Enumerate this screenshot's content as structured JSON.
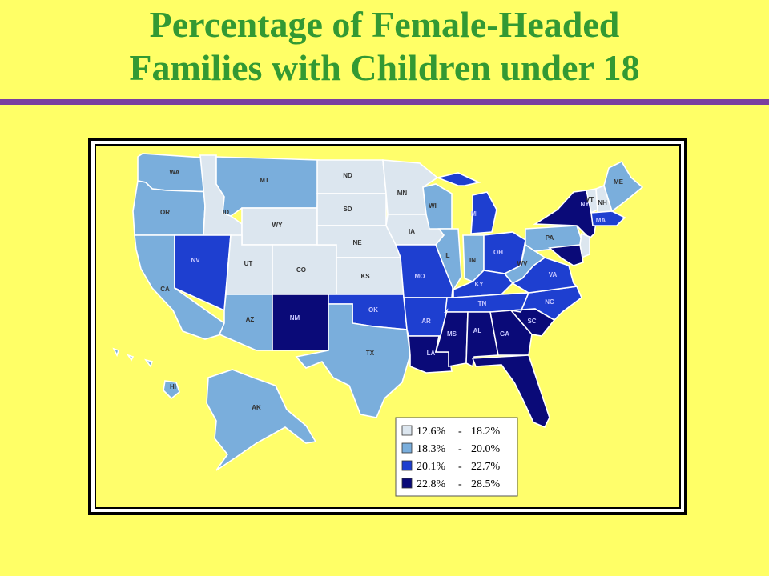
{
  "title": {
    "line1": "Percentage of Female-Headed",
    "line2": "Families with Children under 18"
  },
  "colors": {
    "background": "#ffff66",
    "title": "#339933",
    "rule": "#7a3fa0",
    "bin1": "#dce6ef",
    "bin2": "#7aaedc",
    "bin3": "#1e3fd0",
    "bin4": "#0a0a78"
  },
  "legend": [
    {
      "low": "12.6%",
      "sep": "-",
      "high": "18.2%",
      "bin": "bin1"
    },
    {
      "low": "18.3%",
      "sep": "-",
      "high": "20.0%",
      "bin": "bin2"
    },
    {
      "low": "20.1%",
      "sep": "-",
      "high": "22.7%",
      "bin": "bin3"
    },
    {
      "low": "22.8%",
      "sep": "-",
      "high": "28.5%",
      "bin": "bin4"
    }
  ],
  "states": {
    "WA": "bin2",
    "OR": "bin2",
    "CA": "bin2",
    "ID": "bin1",
    "NV": "bin3",
    "MT": "bin2",
    "WY": "bin1",
    "UT": "bin1",
    "CO": "bin1",
    "AZ": "bin2",
    "NM": "bin4",
    "ND": "bin1",
    "SD": "bin1",
    "NE": "bin1",
    "KS": "bin1",
    "OK": "bin3",
    "TX": "bin2",
    "MN": "bin1",
    "IA": "bin1",
    "MO": "bin3",
    "AR": "bin3",
    "LA": "bin4",
    "WI": "bin2",
    "IL": "bin2",
    "MI": "bin3",
    "IN": "bin2",
    "OH": "bin3",
    "KY": "bin3",
    "TN": "bin3",
    "MS": "bin4",
    "AL": "bin4",
    "GA": "bin4",
    "FL": "bin4",
    "SC": "bin4",
    "NC": "bin3",
    "VA": "bin3",
    "WV": "bin2",
    "PA": "bin2",
    "NY": "bin4",
    "ME": "bin2",
    "VT": "bin1",
    "NH": "bin1",
    "MA": "bin3",
    "NJ": "bin1",
    "MD": "bin4",
    "AK": "bin2",
    "HI": "bin2"
  },
  "labels": {
    "WA": "WA",
    "OR": "OR",
    "CA": "CA",
    "ID": "ID",
    "NV": "NV",
    "MT": "MT",
    "WY": "WY",
    "UT": "UT",
    "CO": "CO",
    "AZ": "AZ",
    "NM": "NM",
    "ND": "ND",
    "SD": "SD",
    "NE": "NE",
    "KS": "KS",
    "OK": "OK",
    "TX": "TX",
    "MN": "MN",
    "IA": "IA",
    "MO": "MO",
    "AR": "AR",
    "LA": "LA",
    "WI": "WI",
    "IL": "IL",
    "MI": "MI",
    "IN": "IN",
    "OH": "OH",
    "KY": "KY",
    "TN": "TN",
    "MS": "MS",
    "AL": "AL",
    "GA": "GA",
    "SC": "SC",
    "NC": "NC",
    "VA": "VA",
    "WV": "WV",
    "PA": "PA",
    "NY": "NY",
    "ME": "ME",
    "VT": "VT",
    "NH": "NH",
    "MA": "MA",
    "AK": "AK",
    "HI": "HI"
  }
}
